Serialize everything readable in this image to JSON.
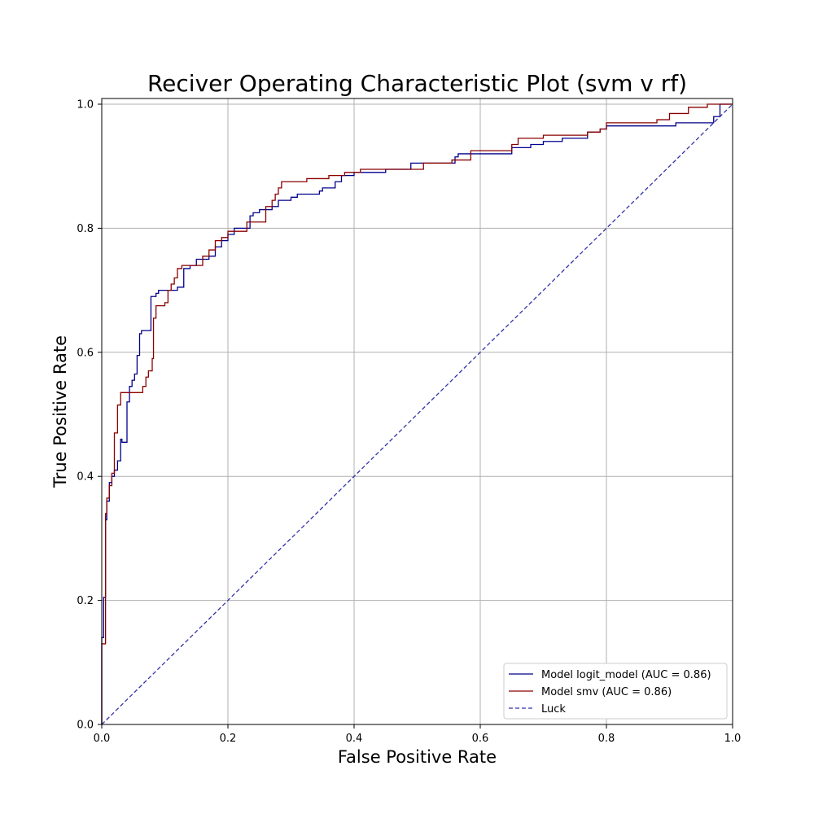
{
  "chart_data": {
    "type": "line",
    "title": "Reciver Operating Characteristic Plot (svm v rf)",
    "xlabel": "False Positive Rate",
    "ylabel": "True Positive Rate",
    "xlim": [
      0.0,
      1.0
    ],
    "ylim": [
      0.0,
      1.0
    ],
    "xticks": [
      0.0,
      0.2,
      0.4,
      0.6,
      0.8,
      1.0
    ],
    "yticks": [
      0.0,
      0.2,
      0.4,
      0.6,
      0.8,
      1.0
    ],
    "xtick_labels": [
      "0.0",
      "0.2",
      "0.4",
      "0.6",
      "0.8",
      "1.0"
    ],
    "ytick_labels": [
      "0.0",
      "0.2",
      "0.4",
      "0.6",
      "0.8",
      "1.0"
    ],
    "grid": true,
    "legend_position": "lower-right",
    "series": [
      {
        "name": "Model logit_model (AUC = 0.86)",
        "color": "#00008b",
        "dash": "solid",
        "x": [
          0.0,
          0.0,
          0.003,
          0.003,
          0.006,
          0.006,
          0.008,
          0.008,
          0.012,
          0.012,
          0.016,
          0.016,
          0.02,
          0.02,
          0.025,
          0.025,
          0.03,
          0.03,
          0.032,
          0.032,
          0.04,
          0.04,
          0.044,
          0.044,
          0.048,
          0.048,
          0.052,
          0.052,
          0.056,
          0.056,
          0.06,
          0.06,
          0.063,
          0.063,
          0.078,
          0.078,
          0.086,
          0.086,
          0.09,
          0.09,
          0.12,
          0.12,
          0.13,
          0.13,
          0.14,
          0.14,
          0.15,
          0.15,
          0.17,
          0.17,
          0.18,
          0.18,
          0.19,
          0.19,
          0.2,
          0.2,
          0.21,
          0.21,
          0.235,
          0.235,
          0.24,
          0.24,
          0.25,
          0.25,
          0.27,
          0.27,
          0.28,
          0.28,
          0.3,
          0.3,
          0.31,
          0.31,
          0.345,
          0.345,
          0.35,
          0.35,
          0.37,
          0.37,
          0.38,
          0.38,
          0.4,
          0.4,
          0.43,
          0.43,
          0.45,
          0.45,
          0.49,
          0.49,
          0.56,
          0.56,
          0.565,
          0.565,
          0.65,
          0.65,
          0.68,
          0.68,
          0.7,
          0.7,
          0.73,
          0.73,
          0.77,
          0.77,
          0.79,
          0.79,
          0.8,
          0.8,
          0.91,
          0.91,
          0.97,
          0.97,
          0.98,
          0.98,
          1.0,
          1.0
        ],
        "y": [
          0.0,
          0.14,
          0.14,
          0.205,
          0.205,
          0.33,
          0.33,
          0.36,
          0.36,
          0.39,
          0.39,
          0.4,
          0.4,
          0.41,
          0.41,
          0.425,
          0.425,
          0.46,
          0.46,
          0.455,
          0.455,
          0.52,
          0.52,
          0.545,
          0.545,
          0.555,
          0.555,
          0.565,
          0.565,
          0.595,
          0.595,
          0.63,
          0.63,
          0.635,
          0.635,
          0.69,
          0.69,
          0.695,
          0.695,
          0.7,
          0.7,
          0.705,
          0.705,
          0.735,
          0.735,
          0.74,
          0.74,
          0.75,
          0.75,
          0.755,
          0.755,
          0.77,
          0.77,
          0.78,
          0.78,
          0.79,
          0.79,
          0.8,
          0.8,
          0.82,
          0.82,
          0.825,
          0.825,
          0.83,
          0.83,
          0.835,
          0.835,
          0.845,
          0.845,
          0.85,
          0.85,
          0.855,
          0.855,
          0.86,
          0.86,
          0.865,
          0.865,
          0.875,
          0.875,
          0.885,
          0.885,
          0.89,
          0.89,
          0.89,
          0.89,
          0.895,
          0.895,
          0.905,
          0.905,
          0.915,
          0.915,
          0.92,
          0.92,
          0.93,
          0.93,
          0.935,
          0.935,
          0.94,
          0.94,
          0.945,
          0.945,
          0.955,
          0.955,
          0.96,
          0.96,
          0.965,
          0.965,
          0.97,
          0.97,
          0.98,
          0.98,
          1.0,
          1.0,
          1.0
        ]
      },
      {
        "name": "Model smv (AUC = 0.86)",
        "color": "#8b0000",
        "dash": "solid",
        "x": [
          0.0,
          0.0,
          0.006,
          0.006,
          0.008,
          0.008,
          0.012,
          0.012,
          0.016,
          0.016,
          0.02,
          0.02,
          0.025,
          0.025,
          0.03,
          0.03,
          0.034,
          0.034,
          0.065,
          0.065,
          0.07,
          0.07,
          0.074,
          0.074,
          0.08,
          0.08,
          0.082,
          0.082,
          0.086,
          0.086,
          0.1,
          0.1,
          0.105,
          0.105,
          0.11,
          0.11,
          0.115,
          0.115,
          0.12,
          0.12,
          0.127,
          0.127,
          0.16,
          0.16,
          0.17,
          0.17,
          0.18,
          0.18,
          0.19,
          0.19,
          0.2,
          0.2,
          0.23,
          0.23,
          0.26,
          0.26,
          0.27,
          0.27,
          0.275,
          0.275,
          0.28,
          0.28,
          0.285,
          0.285,
          0.325,
          0.325,
          0.36,
          0.36,
          0.385,
          0.385,
          0.41,
          0.41,
          0.51,
          0.51,
          0.555,
          0.555,
          0.585,
          0.585,
          0.65,
          0.65,
          0.66,
          0.66,
          0.7,
          0.7,
          0.77,
          0.77,
          0.79,
          0.79,
          0.8,
          0.8,
          0.88,
          0.88,
          0.9,
          0.9,
          0.93,
          0.93,
          0.96,
          0.96,
          1.0
        ],
        "y": [
          0.0,
          0.13,
          0.13,
          0.34,
          0.34,
          0.365,
          0.365,
          0.385,
          0.385,
          0.405,
          0.405,
          0.47,
          0.47,
          0.515,
          0.515,
          0.535,
          0.535,
          0.535,
          0.535,
          0.545,
          0.545,
          0.56,
          0.56,
          0.57,
          0.57,
          0.59,
          0.59,
          0.655,
          0.655,
          0.675,
          0.675,
          0.68,
          0.68,
          0.7,
          0.7,
          0.71,
          0.71,
          0.72,
          0.72,
          0.735,
          0.735,
          0.74,
          0.74,
          0.755,
          0.755,
          0.765,
          0.765,
          0.78,
          0.78,
          0.785,
          0.785,
          0.795,
          0.795,
          0.81,
          0.81,
          0.835,
          0.835,
          0.845,
          0.845,
          0.855,
          0.855,
          0.865,
          0.865,
          0.875,
          0.875,
          0.88,
          0.88,
          0.885,
          0.885,
          0.89,
          0.89,
          0.895,
          0.895,
          0.905,
          0.905,
          0.91,
          0.91,
          0.925,
          0.925,
          0.935,
          0.935,
          0.945,
          0.945,
          0.95,
          0.95,
          0.955,
          0.955,
          0.96,
          0.96,
          0.97,
          0.97,
          0.975,
          0.975,
          0.985,
          0.985,
          0.995,
          0.995,
          1.0,
          1.0
        ]
      },
      {
        "name": "Luck",
        "color": "#3333aa",
        "dash": "dashed",
        "x": [
          0.0,
          1.0
        ],
        "y": [
          0.0,
          1.0
        ]
      }
    ]
  }
}
